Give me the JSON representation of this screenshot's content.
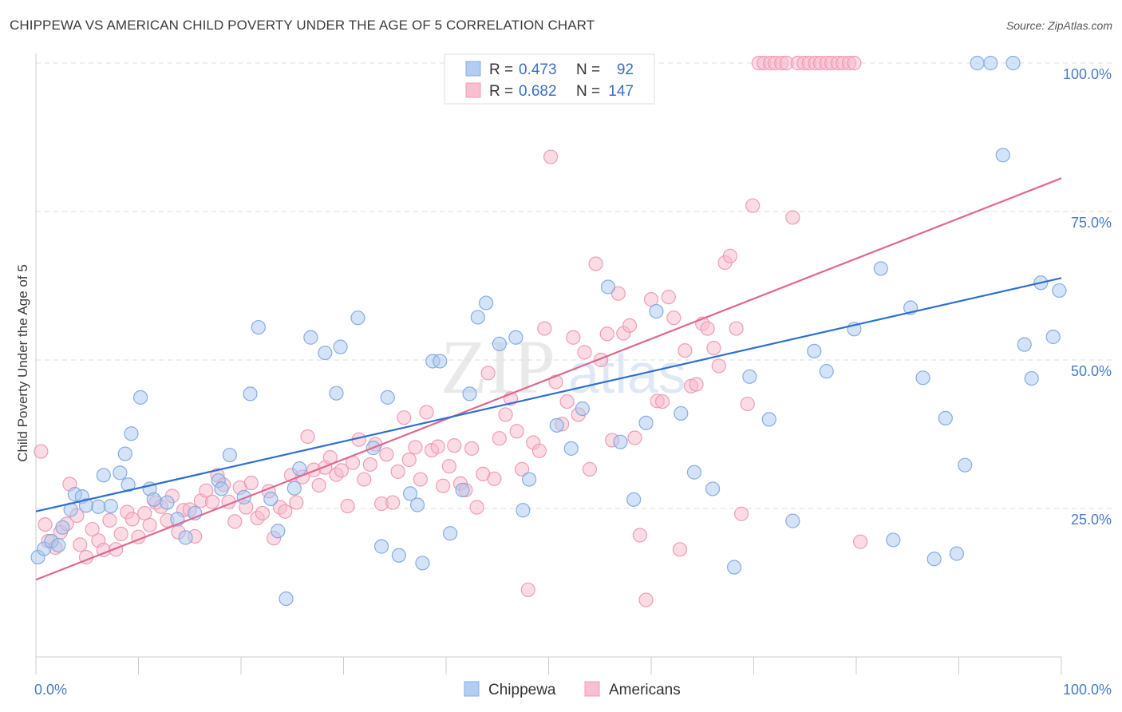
{
  "title": "CHIPPEWA VS AMERICAN CHILD POVERTY UNDER THE AGE OF 5 CORRELATION CHART",
  "source": "Source: ZipAtlas.com",
  "watermark": {
    "zip": "ZIP",
    "atlas": "atlas"
  },
  "legend": {
    "r_label": "R =",
    "n_label": "N =",
    "rows": [
      {
        "r": "0.473",
        "n": "92"
      },
      {
        "r": "0.682",
        "n": "147"
      }
    ]
  },
  "bottom_legend": [
    "Chippewa",
    "Americans"
  ],
  "colors": {
    "chippewa_fill": "#a9c8f0",
    "chippewa_stroke": "#7aa6e0",
    "chippewa_line": "#2f6fcf",
    "americans_fill": "#f7b9cc",
    "americans_stroke": "#ee93ae",
    "americans_line": "#e0678f",
    "tick_label": "#4a7ac8"
  },
  "chart_data": {
    "type": "scatter",
    "title": "CHIPPEWA VS AMERICAN CHILD POVERTY UNDER THE AGE OF 5 CORRELATION CHART",
    "xlabel": "",
    "ylabel": "Child Poverty Under the Age of 5",
    "xlim": [
      0,
      100
    ],
    "ylim": [
      0,
      100
    ],
    "x_tick_labels": [
      "0.0%",
      "100.0%"
    ],
    "y_tick_labels": [
      "25.0%",
      "50.0%",
      "75.0%",
      "100.0%"
    ],
    "y_ticks": [
      25,
      50,
      75,
      100
    ],
    "grid": "horizontal dashed",
    "legend_position": "top-center",
    "series": [
      {
        "name": "Chippewa",
        "r": 0.473,
        "n": 92,
        "trend": [
          [
            0,
            24.5
          ],
          [
            100,
            63.8
          ]
        ],
        "points": [
          [
            0.2,
            16.8
          ],
          [
            0.8,
            18.2
          ],
          [
            1.5,
            19.5
          ],
          [
            2.2,
            18.8
          ],
          [
            2.6,
            21.8
          ],
          [
            3.4,
            24.8
          ],
          [
            3.8,
            27.4
          ],
          [
            4.5,
            27.0
          ],
          [
            4.9,
            25.5
          ],
          [
            6.1,
            25.3
          ],
          [
            6.6,
            30.6
          ],
          [
            7.3,
            25.4
          ],
          [
            8.2,
            31.0
          ],
          [
            8.7,
            34.2
          ],
          [
            9.0,
            29.0
          ],
          [
            9.3,
            37.6
          ],
          [
            10.2,
            43.7
          ],
          [
            11.1,
            28.3
          ],
          [
            11.5,
            26.5
          ],
          [
            12.8,
            26.0
          ],
          [
            13.8,
            23.2
          ],
          [
            14.6,
            20.1
          ],
          [
            15.5,
            24.2
          ],
          [
            17.8,
            29.7
          ],
          [
            18.1,
            28.3
          ],
          [
            18.9,
            34.0
          ],
          [
            20.3,
            26.9
          ],
          [
            20.9,
            44.3
          ],
          [
            21.7,
            55.5
          ],
          [
            22.9,
            26.6
          ],
          [
            23.6,
            21.2
          ],
          [
            24.4,
            9.8
          ],
          [
            25.2,
            28.4
          ],
          [
            25.7,
            31.7
          ],
          [
            26.8,
            53.8
          ],
          [
            28.2,
            51.2
          ],
          [
            29.3,
            44.4
          ],
          [
            29.7,
            52.2
          ],
          [
            31.4,
            57.1
          ],
          [
            32.9,
            35.2
          ],
          [
            33.7,
            18.6
          ],
          [
            34.3,
            43.7
          ],
          [
            35.4,
            17.1
          ],
          [
            36.5,
            27.5
          ],
          [
            37.2,
            25.6
          ],
          [
            37.7,
            15.8
          ],
          [
            38.7,
            49.8
          ],
          [
            39.4,
            49.8
          ],
          [
            40.4,
            20.8
          ],
          [
            41.6,
            28.1
          ],
          [
            42.3,
            44.3
          ],
          [
            43.1,
            57.2
          ],
          [
            43.9,
            59.6
          ],
          [
            45.2,
            52.7
          ],
          [
            46.8,
            53.8
          ],
          [
            47.5,
            24.7
          ],
          [
            48.1,
            29.9
          ],
          [
            50.8,
            39.0
          ],
          [
            52.2,
            35.1
          ],
          [
            53.3,
            41.8
          ],
          [
            55.8,
            62.3
          ],
          [
            57.0,
            36.2
          ],
          [
            58.3,
            26.5
          ],
          [
            59.5,
            39.4
          ],
          [
            60.5,
            58.2
          ],
          [
            62.9,
            41.0
          ],
          [
            64.2,
            31.1
          ],
          [
            66.0,
            28.3
          ],
          [
            68.1,
            15.1
          ],
          [
            69.6,
            47.2
          ],
          [
            71.5,
            40.0
          ],
          [
            73.8,
            22.9
          ],
          [
            75.9,
            51.5
          ],
          [
            77.1,
            48.1
          ],
          [
            79.8,
            55.2
          ],
          [
            82.4,
            65.4
          ],
          [
            83.6,
            19.7
          ],
          [
            85.3,
            58.8
          ],
          [
            86.5,
            47.0
          ],
          [
            87.6,
            16.5
          ],
          [
            88.7,
            40.2
          ],
          [
            89.8,
            17.4
          ],
          [
            90.6,
            32.3
          ],
          [
            91.8,
            100
          ],
          [
            93.1,
            100
          ],
          [
            94.3,
            84.5
          ],
          [
            95.3,
            100
          ],
          [
            96.4,
            52.6
          ],
          [
            97.1,
            46.9
          ],
          [
            98.0,
            63.0
          ],
          [
            99.2,
            53.9
          ],
          [
            99.8,
            61.7
          ]
        ]
      },
      {
        "name": "Americans",
        "r": 0.682,
        "n": 147,
        "trend": [
          [
            0,
            13.0
          ],
          [
            100,
            80.6
          ]
        ],
        "points": [
          [
            0.5,
            34.6
          ],
          [
            0.9,
            22.3
          ],
          [
            1.2,
            19.5
          ],
          [
            1.9,
            18.4
          ],
          [
            2.4,
            21.0
          ],
          [
            3.0,
            22.4
          ],
          [
            3.3,
            29.1
          ],
          [
            4.0,
            23.8
          ],
          [
            4.3,
            18.9
          ],
          [
            4.9,
            16.8
          ],
          [
            5.5,
            21.5
          ],
          [
            6.1,
            19.6
          ],
          [
            6.6,
            18.0
          ],
          [
            7.2,
            23.0
          ],
          [
            7.8,
            18.1
          ],
          [
            8.3,
            20.7
          ],
          [
            8.9,
            24.4
          ],
          [
            9.4,
            23.2
          ],
          [
            10.0,
            20.2
          ],
          [
            10.6,
            24.2
          ],
          [
            11.1,
            22.2
          ],
          [
            11.7,
            26.0
          ],
          [
            12.2,
            25.3
          ],
          [
            12.8,
            23.0
          ],
          [
            13.3,
            27.1
          ],
          [
            13.9,
            21.0
          ],
          [
            14.4,
            24.7
          ],
          [
            15.0,
            24.8
          ],
          [
            15.5,
            20.3
          ],
          [
            16.1,
            26.3
          ],
          [
            16.6,
            28.0
          ],
          [
            17.2,
            26.1
          ],
          [
            17.7,
            30.6
          ],
          [
            18.3,
            29.0
          ],
          [
            18.8,
            26.1
          ],
          [
            19.4,
            22.8
          ],
          [
            19.9,
            28.5
          ],
          [
            20.5,
            25.2
          ],
          [
            21.0,
            29.3
          ],
          [
            21.6,
            23.4
          ],
          [
            22.1,
            24.2
          ],
          [
            22.7,
            27.9
          ],
          [
            23.2,
            20.0
          ],
          [
            23.8,
            25.2
          ],
          [
            24.3,
            24.5
          ],
          [
            24.9,
            30.6
          ],
          [
            25.4,
            26.0
          ],
          [
            26.0,
            30.3
          ],
          [
            26.5,
            37.1
          ],
          [
            27.1,
            31.5
          ],
          [
            27.6,
            28.9
          ],
          [
            28.2,
            31.9
          ],
          [
            28.7,
            33.6
          ],
          [
            29.3,
            30.7
          ],
          [
            29.8,
            31.4
          ],
          [
            30.4,
            25.4
          ],
          [
            30.9,
            32.7
          ],
          [
            31.5,
            36.6
          ],
          [
            32.0,
            29.9
          ],
          [
            32.6,
            32.4
          ],
          [
            33.1,
            35.8
          ],
          [
            33.7,
            25.8
          ],
          [
            34.2,
            34.1
          ],
          [
            34.8,
            26.0
          ],
          [
            35.3,
            31.2
          ],
          [
            35.9,
            40.3
          ],
          [
            36.4,
            33.2
          ],
          [
            37.0,
            35.3
          ],
          [
            37.5,
            29.9
          ],
          [
            38.1,
            41.2
          ],
          [
            38.6,
            34.8
          ],
          [
            39.2,
            35.4
          ],
          [
            39.7,
            28.8
          ],
          [
            40.3,
            32.1
          ],
          [
            40.8,
            35.6
          ],
          [
            41.4,
            29.2
          ],
          [
            41.9,
            28.1
          ],
          [
            42.5,
            35.1
          ],
          [
            43.0,
            25.2
          ],
          [
            43.6,
            30.8
          ],
          [
            44.1,
            47.8
          ],
          [
            44.7,
            30.0
          ],
          [
            45.2,
            36.8
          ],
          [
            45.8,
            40.8
          ],
          [
            46.3,
            43.5
          ],
          [
            46.9,
            38.0
          ],
          [
            47.4,
            31.6
          ],
          [
            48.0,
            11.3
          ],
          [
            48.5,
            36.1
          ],
          [
            49.1,
            34.7
          ],
          [
            49.6,
            55.3
          ],
          [
            50.2,
            84.2
          ],
          [
            50.7,
            46.3
          ],
          [
            51.3,
            39.2
          ],
          [
            51.8,
            43.0
          ],
          [
            52.4,
            53.8
          ],
          [
            52.9,
            40.8
          ],
          [
            53.5,
            51.3
          ],
          [
            54.0,
            31.6
          ],
          [
            54.6,
            66.2
          ],
          [
            55.1,
            50.0
          ],
          [
            55.7,
            54.4
          ],
          [
            56.2,
            36.5
          ],
          [
            56.8,
            61.2
          ],
          [
            57.3,
            54.5
          ],
          [
            57.9,
            55.8
          ],
          [
            58.4,
            36.9
          ],
          [
            58.9,
            20.5
          ],
          [
            59.5,
            9.6
          ],
          [
            60.0,
            60.2
          ],
          [
            60.6,
            43.1
          ],
          [
            61.1,
            43.0
          ],
          [
            61.7,
            60.6
          ],
          [
            62.2,
            57.1
          ],
          [
            62.8,
            18.1
          ],
          [
            63.3,
            51.6
          ],
          [
            63.9,
            45.6
          ],
          [
            64.4,
            45.9
          ],
          [
            65.0,
            56.1
          ],
          [
            65.5,
            55.3
          ],
          [
            66.1,
            52.0
          ],
          [
            66.6,
            49.0
          ],
          [
            67.2,
            66.4
          ],
          [
            67.7,
            67.5
          ],
          [
            68.3,
            55.3
          ],
          [
            68.8,
            24.1
          ],
          [
            69.4,
            42.6
          ],
          [
            69.9,
            76.0
          ],
          [
            70.5,
            100
          ],
          [
            71.0,
            100
          ],
          [
            71.6,
            100
          ],
          [
            72.1,
            100
          ],
          [
            72.7,
            100
          ],
          [
            73.2,
            100
          ],
          [
            73.8,
            74.0
          ],
          [
            74.3,
            100
          ],
          [
            74.9,
            100
          ],
          [
            75.4,
            100
          ],
          [
            76.0,
            100
          ],
          [
            76.5,
            100
          ],
          [
            77.1,
            100
          ],
          [
            77.6,
            100
          ],
          [
            78.2,
            100
          ],
          [
            78.7,
            100
          ],
          [
            79.3,
            100
          ],
          [
            79.8,
            100
          ],
          [
            80.4,
            19.4
          ]
        ]
      }
    ]
  }
}
